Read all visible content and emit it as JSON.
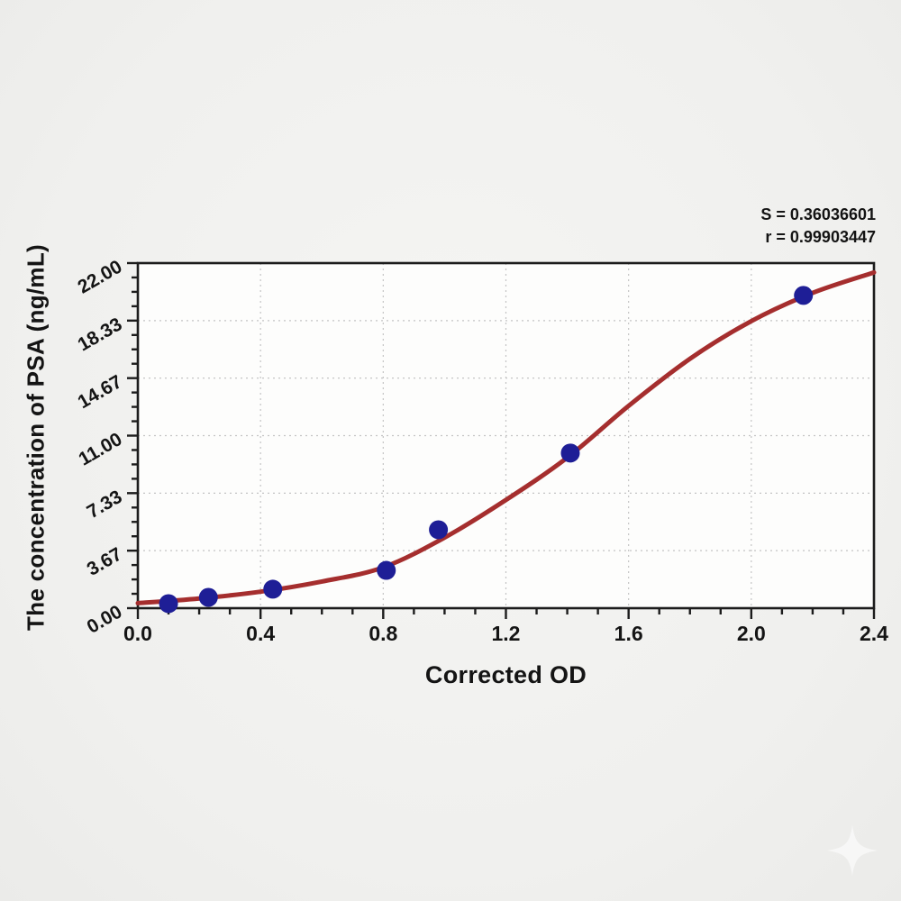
{
  "chart_data": {
    "type": "scatter",
    "title": "",
    "xlabel": "Corrected OD",
    "ylabel": "The concentration of PSA (ng/mL)",
    "xlim": [
      0.0,
      2.4
    ],
    "ylim": [
      0.0,
      22.0
    ],
    "x_tick_labels": [
      "0.0",
      "0.4",
      "0.8",
      "1.2",
      "1.6",
      "2.0",
      "2.4"
    ],
    "y_tick_labels": [
      "0.00",
      "3.67",
      "7.33",
      "11.00",
      "14.67",
      "18.33",
      "22.00"
    ],
    "x_minor_per_major": 4,
    "y_minor_per_major": 4,
    "grid": "dotted gridlines at major ticks",
    "legend_position": "none",
    "y_tick_label_rotation_deg": -30,
    "series": [
      {
        "name": "standard points",
        "type": "scatter",
        "marker": "filled-circle",
        "color": "#1e1e96",
        "points": [
          [
            0.1,
            0.29
          ],
          [
            0.23,
            0.69
          ],
          [
            0.44,
            1.21
          ],
          [
            0.81,
            2.41
          ],
          [
            0.98,
            5.0
          ],
          [
            1.41,
            9.89
          ],
          [
            2.17,
            19.94
          ]
        ]
      },
      {
        "name": "fitted sigmoid curve",
        "type": "line",
        "color": "#a52e2e",
        "points": [
          [
            0.0,
            0.32
          ],
          [
            0.2,
            0.62
          ],
          [
            0.4,
            1.05
          ],
          [
            0.6,
            1.7
          ],
          [
            0.8,
            2.6
          ],
          [
            1.0,
            4.5
          ],
          [
            1.2,
            6.9
          ],
          [
            1.4,
            9.6
          ],
          [
            1.6,
            12.9
          ],
          [
            1.8,
            15.9
          ],
          [
            2.0,
            18.3
          ],
          [
            2.2,
            20.1
          ],
          [
            2.4,
            21.4
          ]
        ]
      }
    ],
    "annotation": {
      "s_label": "S = 0.36036601",
      "r_label": "r = 0.99903447"
    },
    "colors": {
      "curve": "#a52e2e",
      "points": "#1e1e96",
      "axis": "#1c1c1c",
      "grid": "#c4c4c4",
      "plot_bg": "#fdfdfc",
      "page_bg": "#f0f0ee",
      "text": "#141414",
      "watermark": "#ffffff"
    }
  }
}
